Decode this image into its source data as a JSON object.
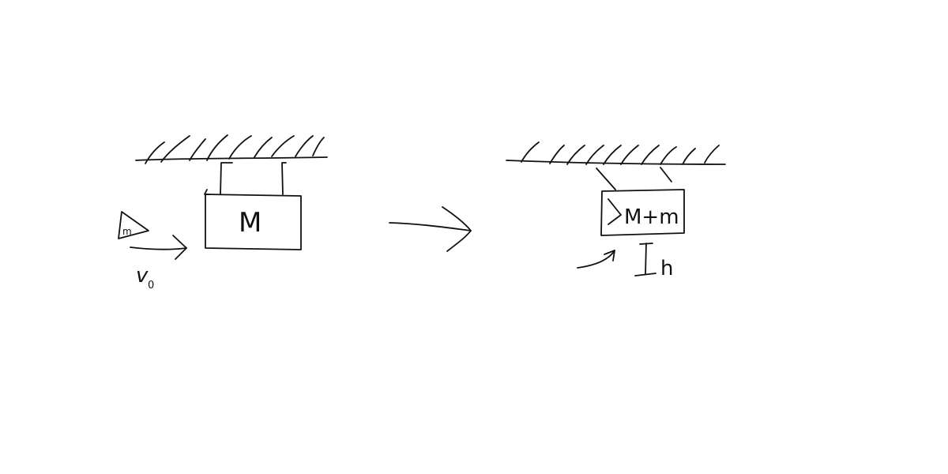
{
  "diagram": {
    "before": {
      "block_label": "M",
      "bullet_label": "m",
      "velocity_label": "v",
      "velocity_subscript": "0"
    },
    "after": {
      "block_label": "M+m",
      "height_label": "h"
    },
    "colors": {
      "ink": "#111111",
      "background": "#ffffff"
    }
  }
}
